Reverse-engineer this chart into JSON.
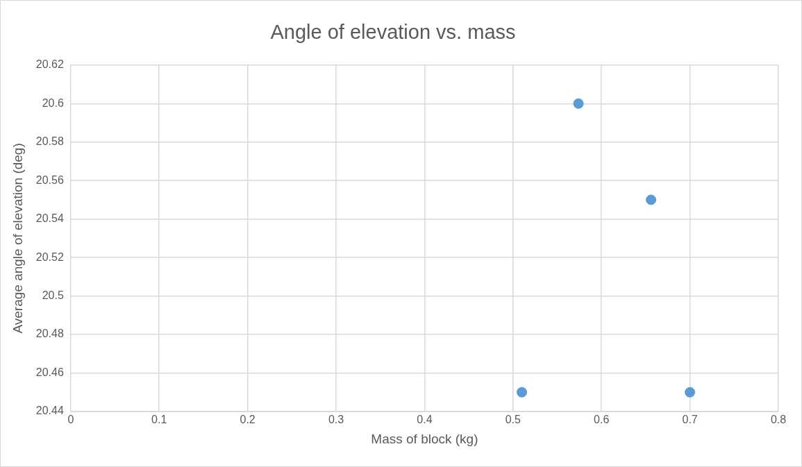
{
  "chart_data": {
    "type": "scatter",
    "title": "Angle of elevation vs. mass",
    "xlabel": "Mass of block (kg)",
    "ylabel": "Average angle of elevation (deg)",
    "x": [
      0.51,
      0.574,
      0.656,
      0.7
    ],
    "series": [
      {
        "color": "#5b9bd5",
        "values": [
          20.45,
          20.6,
          20.55,
          20.45
        ]
      }
    ],
    "xlim": [
      0,
      0.8
    ],
    "xticks": [
      0,
      0.1,
      0.2,
      0.3,
      0.4,
      0.5,
      0.6,
      0.7,
      0.8
    ],
    "ylim": [
      20.44,
      20.62
    ],
    "yticks": [
      20.44,
      20.46,
      20.48,
      20.5,
      20.52,
      20.54,
      20.56,
      20.58,
      20.6,
      20.62
    ],
    "grid": true,
    "legend": false,
    "marker": "circle"
  }
}
